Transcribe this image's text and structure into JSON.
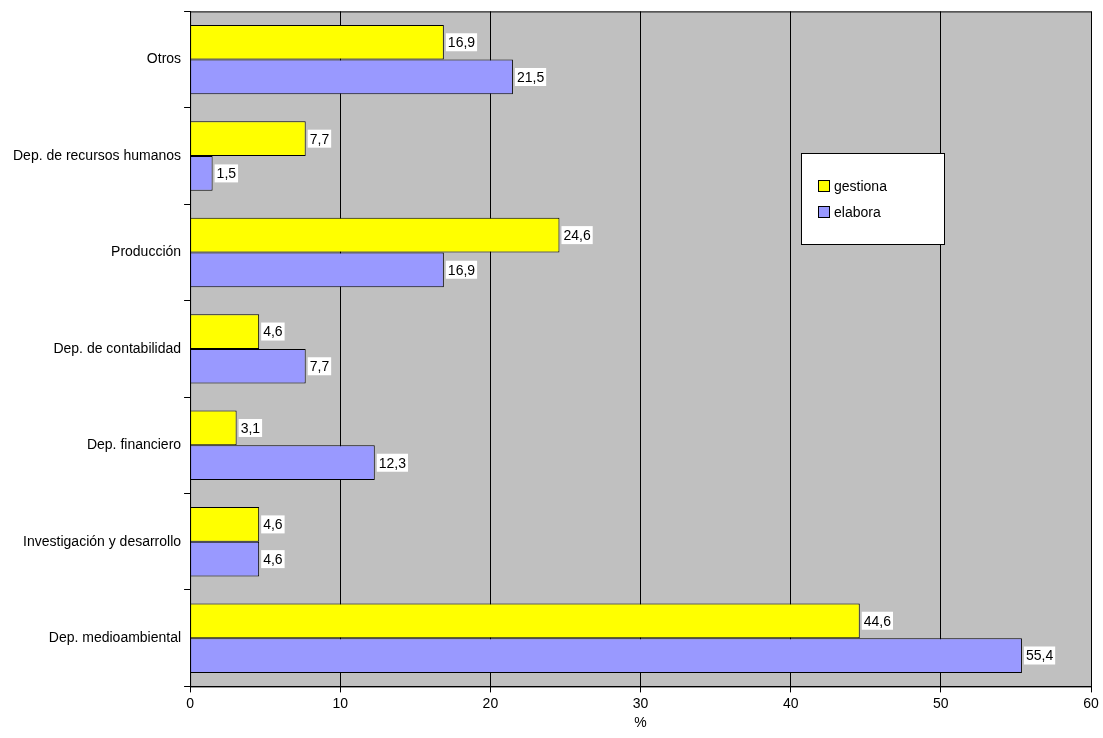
{
  "chart_data": {
    "type": "bar",
    "orientation": "horizontal",
    "xlabel": "%",
    "categories": [
      "Otros",
      "Dep. de recursos humanos",
      "Producción",
      "Dep. de contabilidad",
      "Dep. financiero",
      "Investigación y desarrollo",
      "Dep. medioambiental"
    ],
    "series": [
      {
        "name": "gestiona",
        "color": "#ffff00",
        "values": [
          16.9,
          7.7,
          24.6,
          4.6,
          3.1,
          4.6,
          44.6
        ],
        "value_labels": [
          "16,9",
          "7,7",
          "24,6",
          "4,6",
          "3,1",
          "4,6",
          "44,6"
        ]
      },
      {
        "name": "elabora",
        "color": "#9999ff",
        "values": [
          21.5,
          1.5,
          16.9,
          7.7,
          12.3,
          4.6,
          55.4
        ],
        "value_labels": [
          "21,5",
          "1,5",
          "16,9",
          "7,7",
          "12,3",
          "4,6",
          "55,4"
        ]
      }
    ],
    "xlim": [
      0,
      60
    ],
    "xticks": [
      0,
      10,
      20,
      30,
      40,
      50,
      60
    ],
    "grid": "x",
    "legend": "right"
  }
}
